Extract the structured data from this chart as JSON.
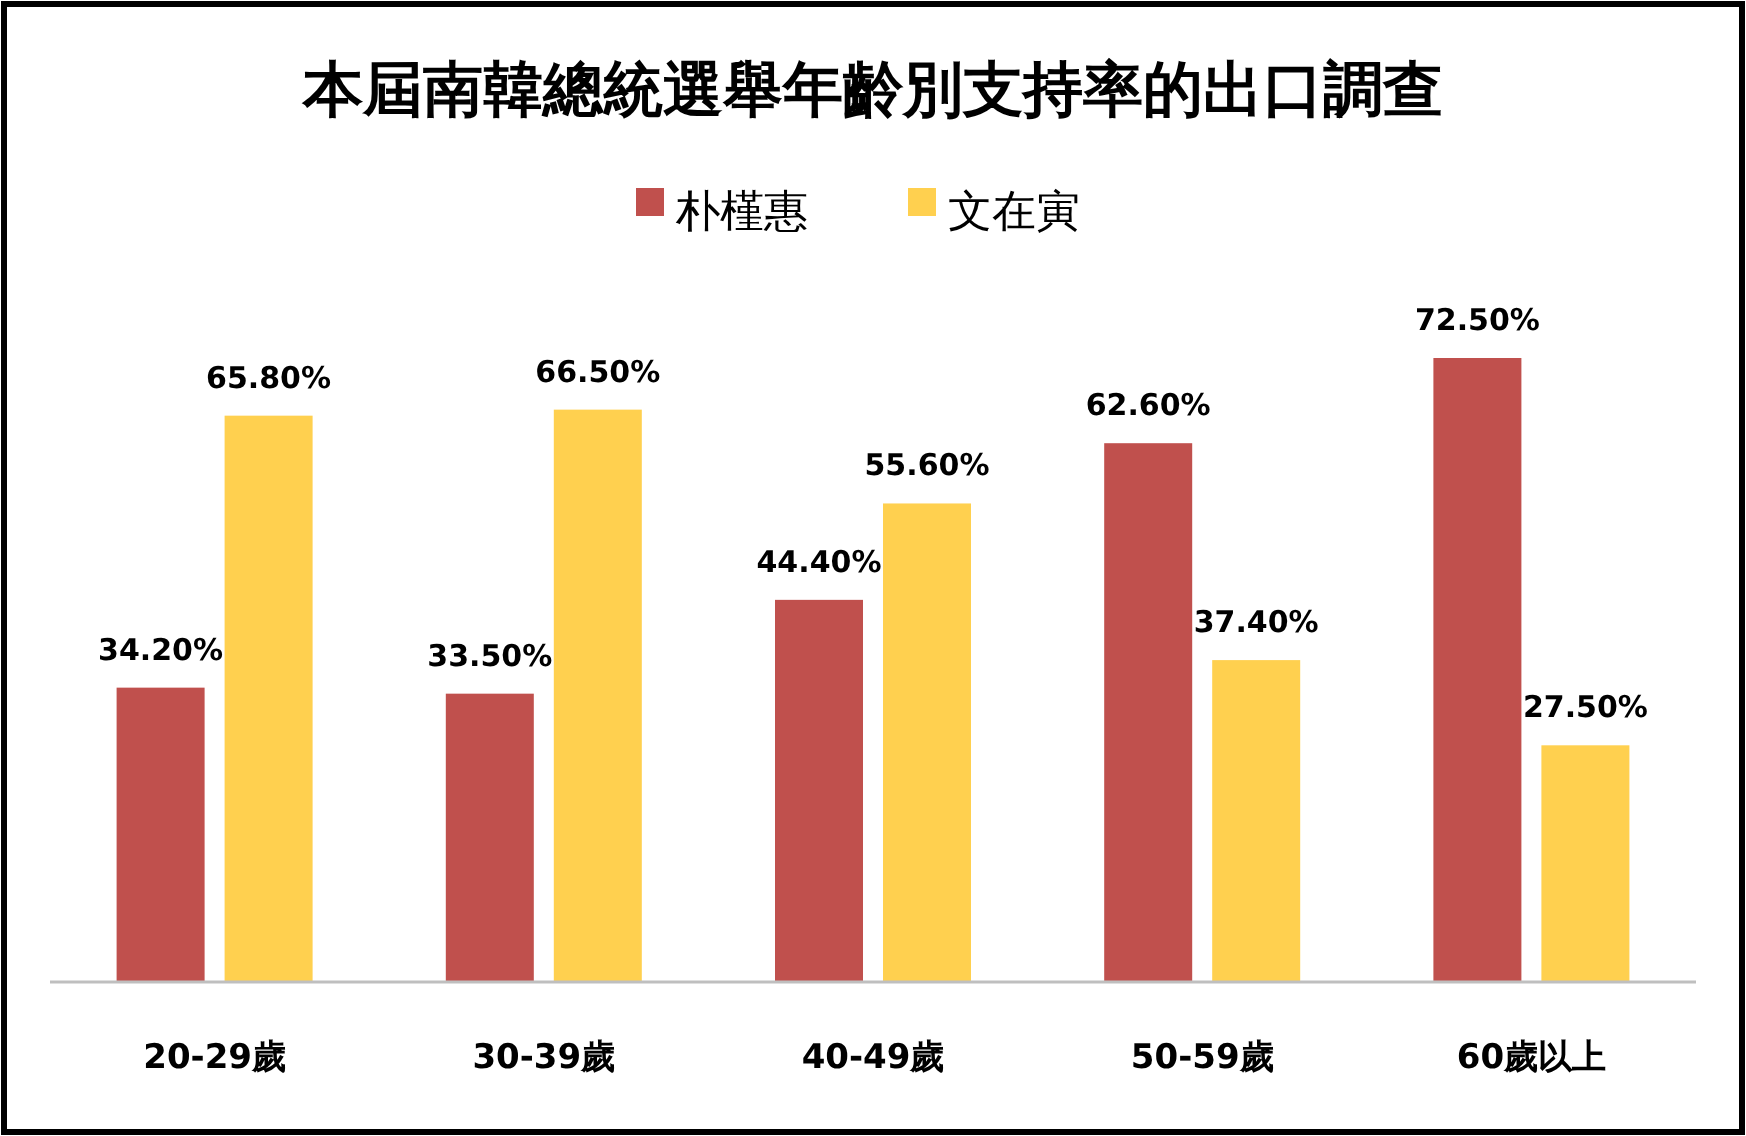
{
  "chart_data": {
    "type": "bar",
    "title": "本屆南韓總統選舉年齡別支持率的出口調查",
    "categories": [
      "20-29歲",
      "30-39歲",
      "40-49歲",
      "50-59歲",
      "60歲以上"
    ],
    "series": [
      {
        "name": "朴槿惠",
        "color": "#c0504d",
        "values": [
          34.2,
          33.5,
          44.4,
          62.6,
          72.5
        ],
        "value_labels": [
          "34.20%",
          "33.50%",
          "44.40%",
          "62.60%",
          "72.50%"
        ]
      },
      {
        "name": "文在寅",
        "color": "#ffd04f",
        "values": [
          65.8,
          66.5,
          55.6,
          37.4,
          27.5
        ],
        "value_labels": [
          "65.80%",
          "66.50%",
          "55.60%",
          "37.40%",
          "27.50%"
        ]
      }
    ],
    "legend": "top"
  }
}
